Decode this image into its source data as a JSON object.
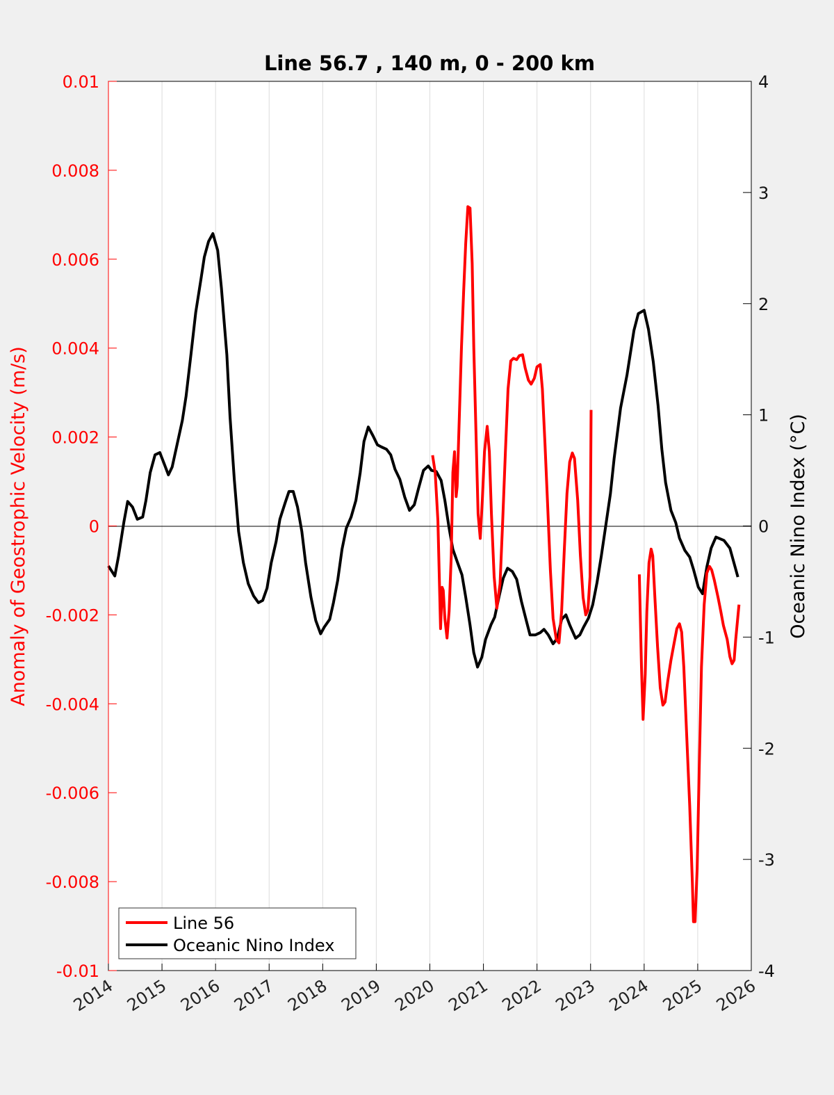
{
  "chart_data": {
    "type": "line",
    "title": "Line 56.7 , 140 m, 0 - 200 km",
    "xlabel": "",
    "ylabel_left": "Anomaly of Geostrophic Velocity (m/s)",
    "ylabel_right": "Oceanic Nino Index (°C)",
    "xlim": [
      2014,
      2026
    ],
    "ylim_left": [
      -0.01,
      0.01
    ],
    "ylim_right": [
      -4,
      4
    ],
    "x_ticks": [
      "2014",
      "2015",
      "2016",
      "2017",
      "2018",
      "2019",
      "2020",
      "2021",
      "2022",
      "2023",
      "2024",
      "2025",
      "2026"
    ],
    "y_left_ticks": [
      "0.01",
      "0.008",
      "0.006",
      "0.004",
      "0.002",
      "0",
      "-0.002",
      "-0.004",
      "-0.006",
      "-0.008",
      "-0.01"
    ],
    "y_right_ticks": [
      "4",
      "3",
      "2",
      "1",
      "0",
      "-1",
      "-2",
      "-3",
      "-4"
    ],
    "grid": "vertical",
    "legend_position": "bottom-left",
    "colors": {
      "line56": "#ff0000",
      "oni": "#000000",
      "left_axis": "#ff0000",
      "right_axis": "#000000"
    },
    "series": [
      {
        "name": "Line 56",
        "axis": "left",
        "segments": [
          [
            [
              2020.05,
              0.00159
            ],
            [
              2020.1,
              0.0012
            ],
            [
              2020.15,
              0.00011
            ],
            [
              2020.2,
              -0.00231
            ],
            [
              2020.23,
              -0.00138
            ],
            [
              2020.25,
              -0.00145
            ],
            [
              2020.28,
              -0.00208
            ],
            [
              2020.32,
              -0.00252
            ],
            [
              2020.36,
              -0.00192
            ],
            [
              2020.4,
              -0.00067
            ],
            [
              2020.43,
              0.0012
            ],
            [
              2020.46,
              0.00167
            ],
            [
              2020.49,
              0.00066
            ],
            [
              2020.51,
              0.00089
            ],
            [
              2020.55,
              0.00245
            ],
            [
              2020.59,
              0.00402
            ],
            [
              2020.63,
              0.00527
            ],
            [
              2020.67,
              0.00636
            ],
            [
              2020.71,
              0.00718
            ],
            [
              2020.75,
              0.00715
            ],
            [
              2020.79,
              0.0059
            ],
            [
              2020.82,
              0.00402
            ],
            [
              2020.86,
              0.00214
            ],
            [
              2020.9,
              0.00027
            ],
            [
              2020.94,
              -0.00028
            ],
            [
              2020.98,
              0.00058
            ],
            [
              2021.02,
              0.00167
            ],
            [
              2021.07,
              0.00224
            ],
            [
              2021.11,
              0.00167
            ],
            [
              2021.15,
              0.00027
            ],
            [
              2021.2,
              -0.00114
            ],
            [
              2021.25,
              -0.00185
            ],
            [
              2021.31,
              -0.0013
            ],
            [
              2021.36,
              0.00011
            ],
            [
              2021.41,
              0.00167
            ],
            [
              2021.46,
              0.00308
            ],
            [
              2021.51,
              0.00371
            ],
            [
              2021.56,
              0.00377
            ],
            [
              2021.62,
              0.00374
            ],
            [
              2021.67,
              0.00383
            ],
            [
              2021.73,
              0.00385
            ],
            [
              2021.78,
              0.00355
            ],
            [
              2021.84,
              0.00328
            ],
            [
              2021.89,
              0.00319
            ],
            [
              2021.95,
              0.00332
            ],
            [
              2022.0,
              0.00358
            ],
            [
              2022.06,
              0.00363
            ],
            [
              2022.1,
              0.00308
            ],
            [
              2022.15,
              0.00183
            ],
            [
              2022.2,
              0.00042
            ],
            [
              2022.25,
              -0.00099
            ],
            [
              2022.3,
              -0.00208
            ],
            [
              2022.36,
              -0.00255
            ],
            [
              2022.41,
              -0.00263
            ],
            [
              2022.46,
              -0.00192
            ],
            [
              2022.51,
              -0.00052
            ],
            [
              2022.56,
              0.00073
            ],
            [
              2022.61,
              0.00144
            ],
            [
              2022.66,
              0.00164
            ],
            [
              2022.7,
              0.00152
            ],
            [
              2022.76,
              0.00058
            ],
            [
              2022.81,
              -0.00067
            ],
            [
              2022.86,
              -0.00161
            ],
            [
              2022.91,
              -0.002
            ],
            [
              2022.95,
              -0.00189
            ],
            [
              2022.99,
              -0.00114
            ],
            [
              2023.01,
              0.00261
            ]
          ],
          [
            [
              2023.91,
              -0.00109
            ],
            [
              2023.95,
              -0.00317
            ],
            [
              2023.98,
              -0.00435
            ],
            [
              2024.02,
              -0.00333
            ],
            [
              2024.05,
              -0.00192
            ],
            [
              2024.09,
              -0.00083
            ],
            [
              2024.13,
              -0.00052
            ],
            [
              2024.16,
              -0.00067
            ],
            [
              2024.2,
              -0.00161
            ],
            [
              2024.25,
              -0.00271
            ],
            [
              2024.3,
              -0.00364
            ],
            [
              2024.35,
              -0.00403
            ],
            [
              2024.39,
              -0.00396
            ],
            [
              2024.44,
              -0.00349
            ],
            [
              2024.5,
              -0.00302
            ],
            [
              2024.56,
              -0.00263
            ],
            [
              2024.61,
              -0.00231
            ],
            [
              2024.66,
              -0.0022
            ],
            [
              2024.7,
              -0.00239
            ],
            [
              2024.74,
              -0.00317
            ],
            [
              2024.79,
              -0.00458
            ],
            [
              2024.85,
              -0.0063
            ],
            [
              2024.9,
              -0.00802
            ],
            [
              2024.92,
              -0.0089
            ],
            [
              2024.95,
              -0.0089
            ],
            [
              2024.99,
              -0.00771
            ],
            [
              2025.03,
              -0.00536
            ],
            [
              2025.07,
              -0.00317
            ],
            [
              2025.12,
              -0.00177
            ],
            [
              2025.17,
              -0.00106
            ],
            [
              2025.22,
              -0.00091
            ],
            [
              2025.26,
              -0.00099
            ],
            [
              2025.31,
              -0.00122
            ],
            [
              2025.38,
              -0.00161
            ],
            [
              2025.43,
              -0.00192
            ],
            [
              2025.48,
              -0.00224
            ],
            [
              2025.55,
              -0.00255
            ],
            [
              2025.6,
              -0.00294
            ],
            [
              2025.64,
              -0.0031
            ],
            [
              2025.68,
              -0.00302
            ],
            [
              2025.71,
              -0.00255
            ],
            [
              2025.77,
              -0.00177
            ]
          ]
        ]
      },
      {
        "name": "Oceanic Nino Index",
        "axis": "right",
        "segments": [
          [
            [
              2014.0,
              -0.36
            ],
            [
              2014.12,
              -0.45
            ],
            [
              2014.19,
              -0.27
            ],
            [
              2014.29,
              0.04
            ],
            [
              2014.36,
              0.22
            ],
            [
              2014.45,
              0.17
            ],
            [
              2014.54,
              0.06
            ],
            [
              2014.64,
              0.08
            ],
            [
              2014.7,
              0.23
            ],
            [
              2014.78,
              0.48
            ],
            [
              2014.87,
              0.64
            ],
            [
              2014.96,
              0.66
            ],
            [
              2015.04,
              0.56
            ],
            [
              2015.12,
              0.46
            ],
            [
              2015.19,
              0.53
            ],
            [
              2015.28,
              0.73
            ],
            [
              2015.38,
              0.95
            ],
            [
              2015.45,
              1.17
            ],
            [
              2015.54,
              1.54
            ],
            [
              2015.63,
              1.92
            ],
            [
              2015.73,
              2.23
            ],
            [
              2015.79,
              2.42
            ],
            [
              2015.87,
              2.56
            ],
            [
              2015.95,
              2.63
            ],
            [
              2016.04,
              2.48
            ],
            [
              2016.11,
              2.14
            ],
            [
              2016.21,
              1.54
            ],
            [
              2016.27,
              0.98
            ],
            [
              2016.35,
              0.42
            ],
            [
              2016.43,
              -0.05
            ],
            [
              2016.52,
              -0.33
            ],
            [
              2016.61,
              -0.52
            ],
            [
              2016.71,
              -0.63
            ],
            [
              2016.8,
              -0.69
            ],
            [
              2016.88,
              -0.67
            ],
            [
              2016.96,
              -0.56
            ],
            [
              2017.04,
              -0.33
            ],
            [
              2017.13,
              -0.14
            ],
            [
              2017.2,
              0.06
            ],
            [
              2017.3,
              0.21
            ],
            [
              2017.37,
              0.31
            ],
            [
              2017.45,
              0.31
            ],
            [
              2017.53,
              0.17
            ],
            [
              2017.61,
              -0.05
            ],
            [
              2017.68,
              -0.33
            ],
            [
              2017.78,
              -0.64
            ],
            [
              2017.87,
              -0.85
            ],
            [
              2017.96,
              -0.97
            ],
            [
              2018.03,
              -0.91
            ],
            [
              2018.13,
              -0.84
            ],
            [
              2018.2,
              -0.69
            ],
            [
              2018.28,
              -0.49
            ],
            [
              2018.36,
              -0.21
            ],
            [
              2018.44,
              -0.02
            ],
            [
              2018.53,
              0.08
            ],
            [
              2018.62,
              0.23
            ],
            [
              2018.7,
              0.48
            ],
            [
              2018.77,
              0.76
            ],
            [
              2018.85,
              0.89
            ],
            [
              2018.94,
              0.81
            ],
            [
              2019.02,
              0.73
            ],
            [
              2019.1,
              0.71
            ],
            [
              2019.19,
              0.69
            ],
            [
              2019.27,
              0.64
            ],
            [
              2019.35,
              0.51
            ],
            [
              2019.44,
              0.42
            ],
            [
              2019.53,
              0.26
            ],
            [
              2019.62,
              0.14
            ],
            [
              2019.71,
              0.19
            ],
            [
              2019.79,
              0.34
            ],
            [
              2019.88,
              0.5
            ],
            [
              2019.97,
              0.54
            ],
            [
              2020.03,
              0.5
            ],
            [
              2020.12,
              0.49
            ],
            [
              2020.21,
              0.41
            ],
            [
              2020.28,
              0.23
            ],
            [
              2020.36,
              -0.02
            ],
            [
              2020.43,
              -0.21
            ],
            [
              2020.51,
              -0.32
            ],
            [
              2020.6,
              -0.44
            ],
            [
              2020.67,
              -0.64
            ],
            [
              2020.75,
              -0.89
            ],
            [
              2020.82,
              -1.14
            ],
            [
              2020.89,
              -1.27
            ],
            [
              2020.97,
              -1.18
            ],
            [
              2021.04,
              -1.02
            ],
            [
              2021.14,
              -0.89
            ],
            [
              2021.21,
              -0.82
            ],
            [
              2021.29,
              -0.64
            ],
            [
              2021.37,
              -0.47
            ],
            [
              2021.45,
              -0.38
            ],
            [
              2021.54,
              -0.41
            ],
            [
              2021.62,
              -0.48
            ],
            [
              2021.71,
              -0.68
            ],
            [
              2021.8,
              -0.85
            ],
            [
              2021.87,
              -0.98
            ],
            [
              2021.97,
              -0.98
            ],
            [
              2022.06,
              -0.96
            ],
            [
              2022.13,
              -0.93
            ],
            [
              2022.21,
              -0.98
            ],
            [
              2022.3,
              -1.06
            ],
            [
              2022.38,
              -1.01
            ],
            [
              2022.46,
              -0.84
            ],
            [
              2022.54,
              -0.8
            ],
            [
              2022.61,
              -0.89
            ],
            [
              2022.72,
              -1.01
            ],
            [
              2022.8,
              -0.98
            ],
            [
              2022.87,
              -0.91
            ],
            [
              2022.96,
              -0.83
            ],
            [
              2023.04,
              -0.71
            ],
            [
              2023.12,
              -0.51
            ],
            [
              2023.2,
              -0.27
            ],
            [
              2023.28,
              -0.01
            ],
            [
              2023.37,
              0.29
            ],
            [
              2023.44,
              0.61
            ],
            [
              2023.56,
              1.06
            ],
            [
              2023.68,
              1.36
            ],
            [
              2023.81,
              1.76
            ],
            [
              2023.89,
              1.91
            ],
            [
              2024.0,
              1.94
            ],
            [
              2024.08,
              1.77
            ],
            [
              2024.17,
              1.48
            ],
            [
              2024.26,
              1.08
            ],
            [
              2024.33,
              0.69
            ],
            [
              2024.4,
              0.39
            ],
            [
              2024.5,
              0.14
            ],
            [
              2024.59,
              0.03
            ],
            [
              2024.66,
              -0.11
            ],
            [
              2024.76,
              -0.22
            ],
            [
              2024.85,
              -0.28
            ],
            [
              2024.92,
              -0.39
            ],
            [
              2025.01,
              -0.55
            ],
            [
              2025.09,
              -0.61
            ],
            [
              2025.17,
              -0.37
            ],
            [
              2025.25,
              -0.2
            ],
            [
              2025.34,
              -0.1
            ],
            [
              2025.49,
              -0.13
            ],
            [
              2025.6,
              -0.2
            ],
            [
              2025.75,
              -0.46
            ]
          ]
        ]
      }
    ]
  }
}
